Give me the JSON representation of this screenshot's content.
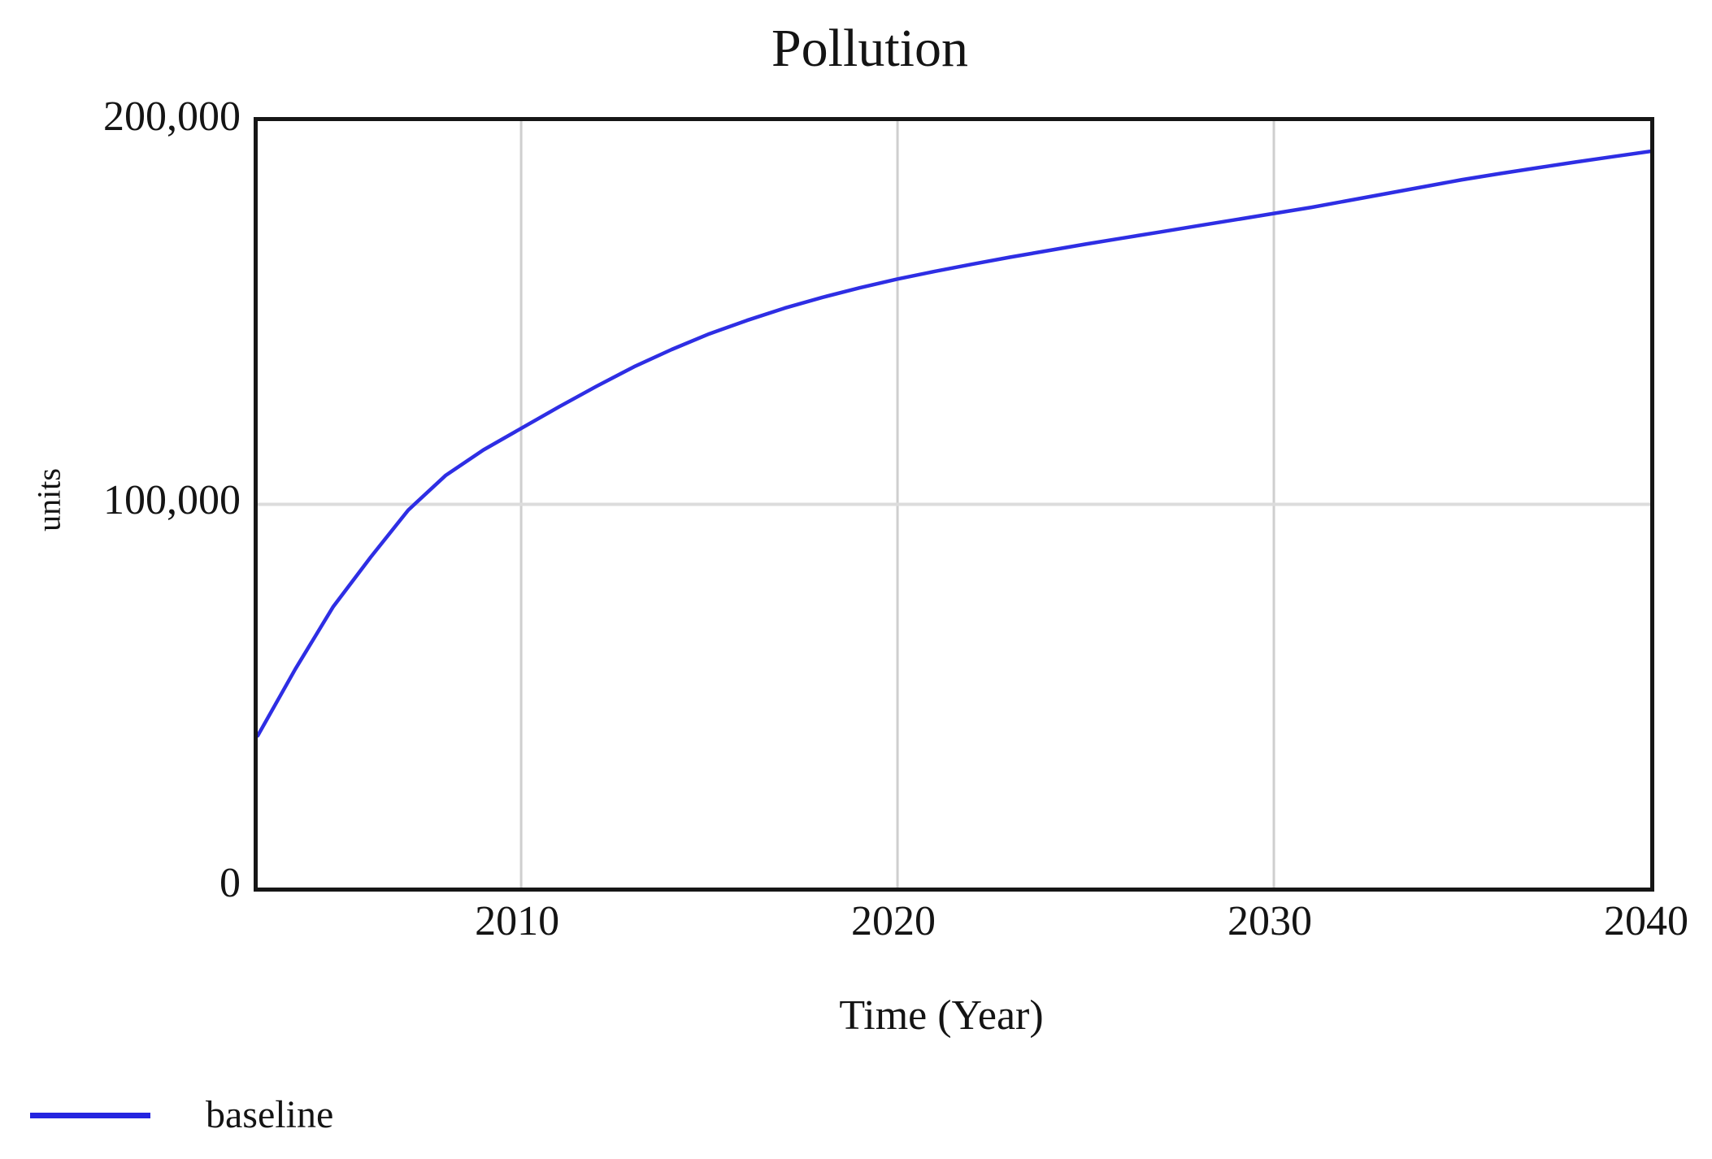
{
  "chart_data": {
    "type": "line",
    "title": "Pollution",
    "xlabel": "Time (Year)",
    "ylabel": "units",
    "xlim": [
      2003,
      2040
    ],
    "ylim": [
      0,
      200000
    ],
    "x_ticks": [
      2010,
      2020,
      2030,
      2040
    ],
    "y_ticks": [
      0,
      100000,
      200000
    ],
    "y_tick_labels": [
      "0",
      "100,000",
      "200,000"
    ],
    "grid": true,
    "x_gridlines": [
      2010,
      2020,
      2030
    ],
    "y_gridlines": [
      100000
    ],
    "legend_position": "bottom-left",
    "series": [
      {
        "name": "baseline",
        "color": "#2e2ee4",
        "x": [
          2003,
          2004,
          2005,
          2006,
          2007,
          2008,
          2009,
          2010,
          2011,
          2012,
          2013,
          2014,
          2015,
          2016,
          2017,
          2018,
          2019,
          2020,
          2021,
          2022,
          2023,
          2024,
          2025,
          2026,
          2027,
          2028,
          2029,
          2030,
          2031,
          2032,
          2033,
          2034,
          2035,
          2036,
          2037,
          2038,
          2039,
          2040
        ],
        "y": [
          39600,
          57000,
          73200,
          86200,
          98500,
          107600,
          114200,
          119800,
          125400,
          130800,
          135900,
          140400,
          144500,
          148000,
          151200,
          154000,
          156500,
          158800,
          160800,
          162700,
          164500,
          166200,
          167900,
          169500,
          171100,
          172700,
          174300,
          175900,
          177500,
          179300,
          181100,
          182900,
          184700,
          186300,
          187800,
          189300,
          190700,
          192100
        ]
      }
    ],
    "colors": {
      "line": "#2e2ee4",
      "legend_line": "#2525e0",
      "gridline": "#cfcfcf",
      "horizontal_gridline": "#dcdcdc",
      "plot_border": "#161616",
      "text": "#141414",
      "background": "#ffffff"
    }
  }
}
